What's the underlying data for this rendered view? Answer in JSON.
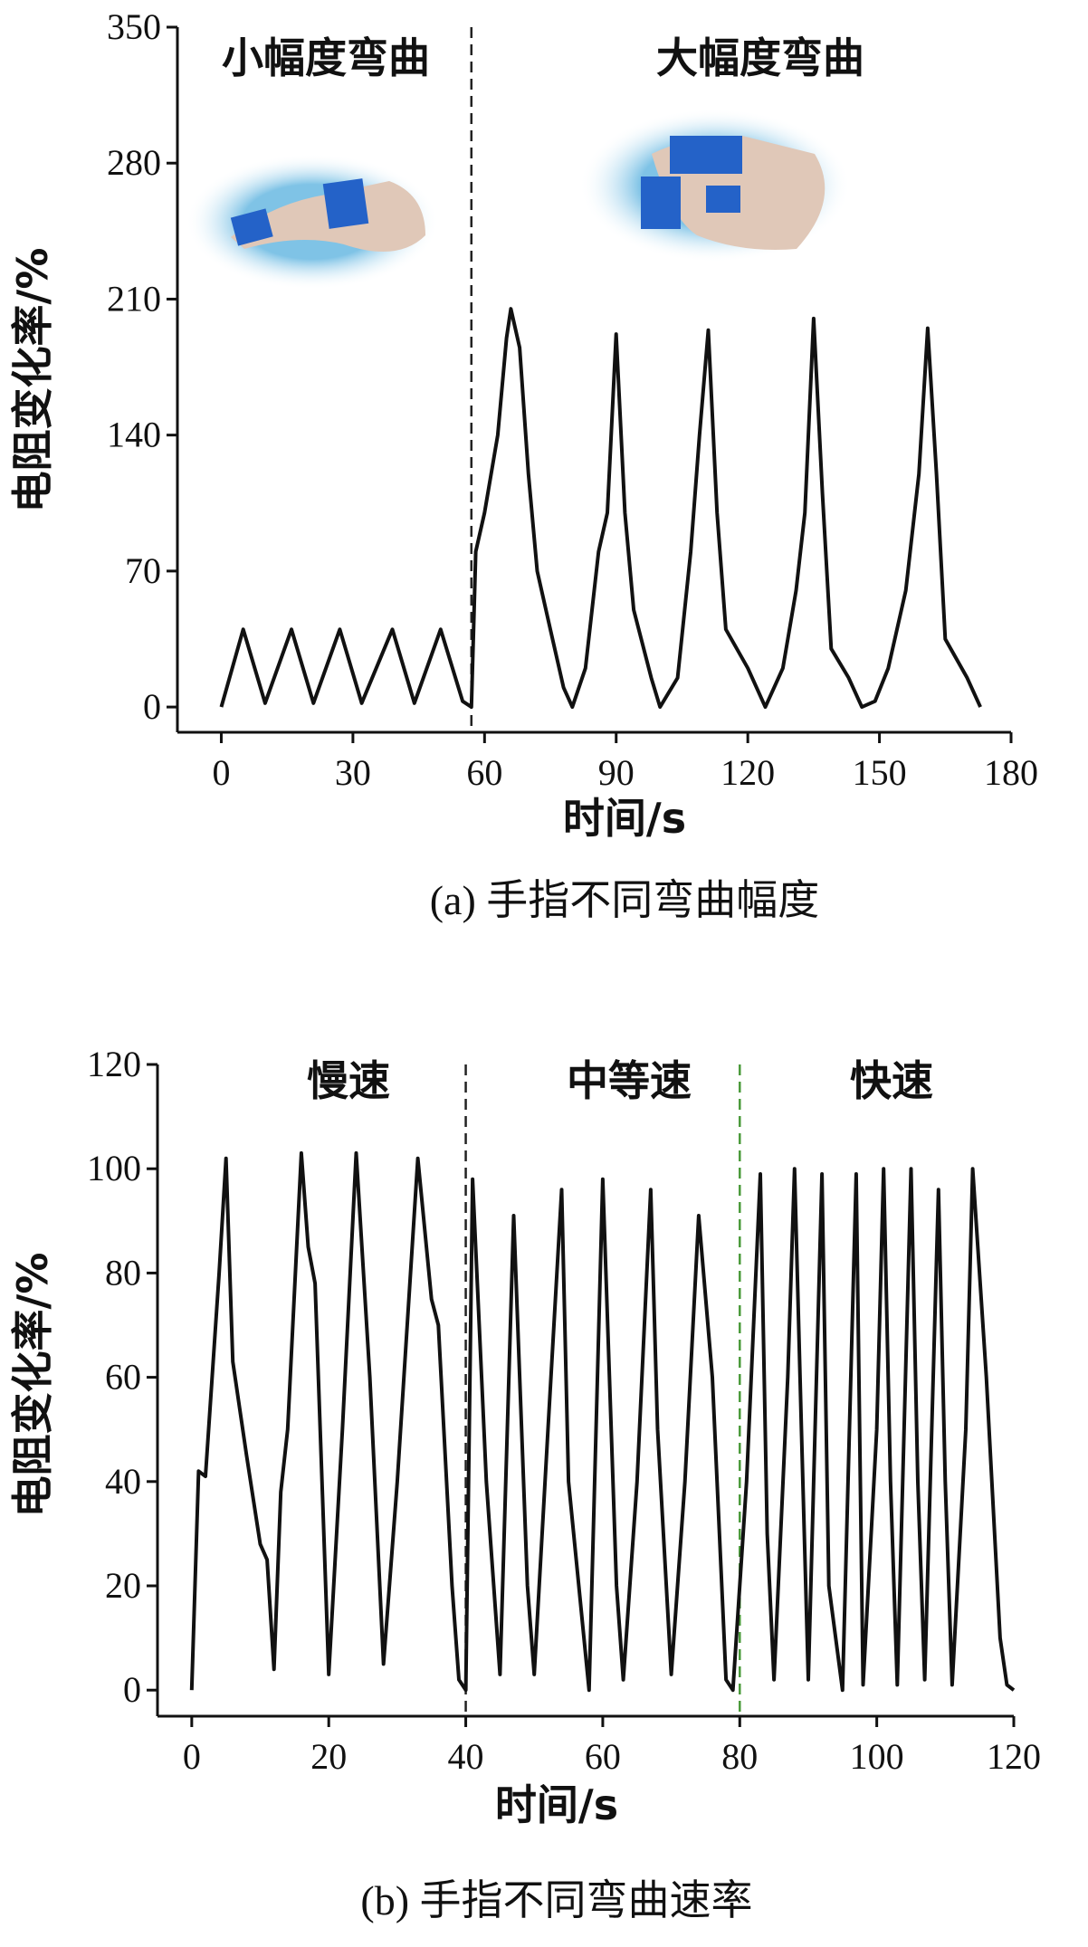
{
  "chart_data": [
    {
      "type": "line",
      "xlabel": "时间/s",
      "ylabel": "电阻变化率/%",
      "caption": "(a) 手指不同弯曲幅度",
      "annotations": [
        "小幅度弯曲",
        "大幅度弯曲"
      ],
      "dividers": [
        {
          "x": 57,
          "color": "#222222"
        }
      ],
      "xlim": [
        -10,
        180
      ],
      "xticks": [
        0,
        30,
        60,
        90,
        120,
        150,
        180
      ],
      "ylim": [
        -13,
        350
      ],
      "yticks": [
        0,
        70,
        140,
        210,
        280,
        350
      ],
      "series": [
        {
          "color": "#111111",
          "x": [
            0,
            5,
            10,
            16,
            21,
            27,
            32,
            39,
            44,
            50,
            55,
            57,
            58,
            60,
            63,
            65,
            66,
            68,
            70,
            72,
            75,
            78,
            80,
            83,
            86,
            88,
            90,
            92,
            94,
            98,
            100,
            104,
            107,
            109,
            111,
            113,
            115,
            120,
            124,
            128,
            131,
            133,
            135,
            137,
            139,
            143,
            146,
            149,
            152,
            156,
            159,
            161,
            163,
            165,
            170,
            173
          ],
          "values": [
            0,
            40,
            2,
            40,
            2,
            40,
            2,
            40,
            2,
            40,
            3,
            0,
            80,
            100,
            140,
            190,
            205,
            185,
            120,
            70,
            40,
            10,
            0,
            20,
            80,
            100,
            192,
            100,
            50,
            15,
            0,
            15,
            80,
            140,
            194,
            100,
            40,
            20,
            0,
            20,
            60,
            100,
            200,
            110,
            30,
            15,
            0,
            3,
            20,
            60,
            120,
            195,
            120,
            35,
            15,
            0
          ]
        }
      ]
    },
    {
      "type": "line",
      "xlabel": "时间/s",
      "ylabel": "电阻变化率/%",
      "caption": "(b) 手指不同弯曲速率",
      "annotations": [
        "慢速",
        "中等速",
        "快速"
      ],
      "dividers": [
        {
          "x": 40,
          "color": "#222222"
        },
        {
          "x": 80,
          "color": "#4a9a3a"
        }
      ],
      "xlim": [
        -5,
        120
      ],
      "xticks": [
        0,
        20,
        40,
        60,
        80,
        100,
        120
      ],
      "ylim": [
        -5,
        120
      ],
      "yticks": [
        0,
        20,
        40,
        60,
        80,
        100,
        120
      ],
      "series": [
        {
          "color": "#111111",
          "x": [
            0,
            1,
            2,
            4,
            5,
            6,
            8,
            10,
            11,
            12,
            13,
            14,
            16,
            17,
            18,
            20,
            22,
            24,
            26,
            28,
            30,
            33,
            35,
            36,
            38,
            39,
            40,
            41,
            43,
            45,
            47,
            49,
            50,
            52,
            54,
            55,
            58,
            60,
            62,
            63,
            65,
            67,
            68,
            70,
            72,
            74,
            76,
            78,
            79,
            81,
            83,
            84,
            85,
            87,
            88,
            89,
            90,
            92,
            93,
            95,
            97,
            98,
            100,
            101,
            102,
            103,
            105,
            106,
            107,
            109,
            110,
            111,
            113,
            114,
            116,
            118,
            119,
            120
          ],
          "values": [
            0,
            42,
            41,
            80,
            102,
            63,
            45,
            28,
            25,
            4,
            38,
            50,
            103,
            85,
            78,
            3,
            50,
            103,
            60,
            5,
            40,
            102,
            75,
            70,
            20,
            2,
            0,
            98,
            40,
            3,
            91,
            20,
            3,
            50,
            96,
            40,
            0,
            98,
            20,
            2,
            40,
            96,
            50,
            3,
            40,
            91,
            60,
            2,
            0,
            40,
            99,
            30,
            2,
            60,
            100,
            50,
            2,
            99,
            20,
            0,
            99,
            1,
            50,
            100,
            40,
            1,
            100,
            40,
            2,
            96,
            40,
            1,
            50,
            100,
            60,
            10,
            1,
            0
          ]
        }
      ]
    }
  ]
}
